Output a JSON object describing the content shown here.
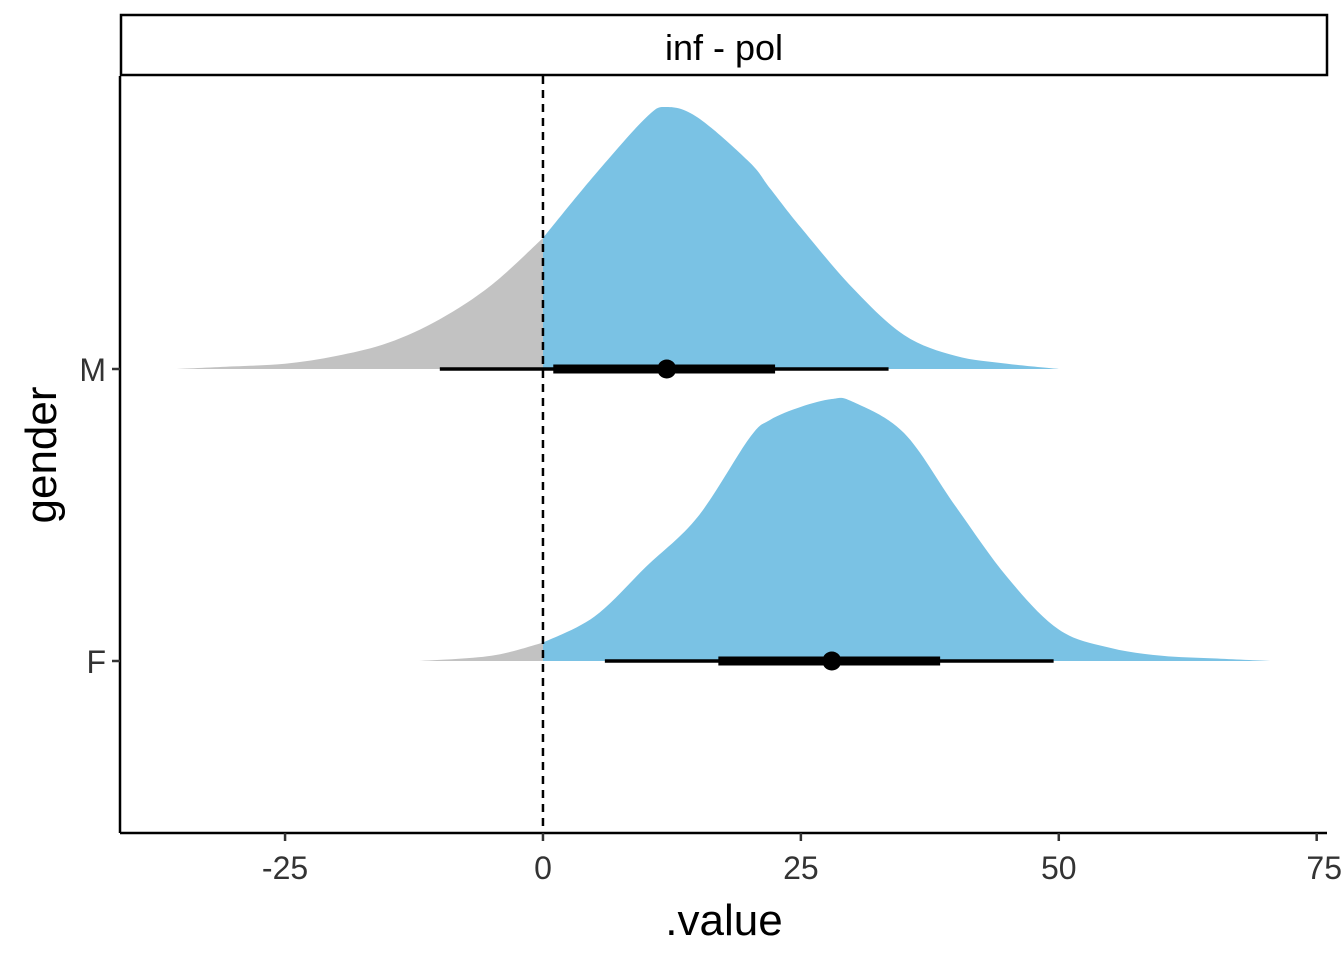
{
  "chart_data": {
    "type": "halfeye",
    "facet_label": "inf - pol",
    "xlabel": ".value",
    "ylabel": "gender",
    "xlim": [
      -41,
      76
    ],
    "x_ticks": [
      -25,
      0,
      25,
      50,
      75
    ],
    "x_tick_labels": [
      "-25",
      "0",
      "25",
      "50",
      "75"
    ],
    "reference_line": 0,
    "fill_colors": {
      "above_zero": "#7AC2E4",
      "below_zero": "#C2C2C2"
    },
    "categories": [
      "M",
      "F"
    ],
    "series": [
      {
        "name": "M",
        "point": 12,
        "interval_66": [
          1,
          22.5
        ],
        "interval_95": [
          -10,
          33.5
        ],
        "density": {
          "x": [
            -35.5,
            -30,
            -25,
            -20,
            -15,
            -10,
            -5,
            0,
            5,
            10,
            12,
            15,
            20,
            22,
            25,
            30,
            35,
            40,
            45,
            50
          ],
          "y": [
            0.0,
            0.01,
            0.02,
            0.05,
            0.1,
            0.19,
            0.32,
            0.5,
            0.74,
            0.96,
            1.0,
            0.96,
            0.79,
            0.69,
            0.54,
            0.31,
            0.13,
            0.05,
            0.02,
            0.0
          ]
        }
      },
      {
        "name": "F",
        "point": 28,
        "interval_66": [
          17,
          38.5
        ],
        "interval_95": [
          6,
          49.5
        ],
        "density": {
          "x": [
            -12,
            -5,
            0,
            5,
            10,
            15,
            20,
            22,
            25,
            28,
            30,
            35,
            40,
            45,
            50,
            55,
            60,
            65,
            70.5
          ],
          "y": [
            0.0,
            0.02,
            0.07,
            0.17,
            0.36,
            0.55,
            0.85,
            0.92,
            0.97,
            1.0,
            0.99,
            0.87,
            0.59,
            0.32,
            0.12,
            0.05,
            0.02,
            0.01,
            0.0
          ]
        }
      }
    ]
  }
}
